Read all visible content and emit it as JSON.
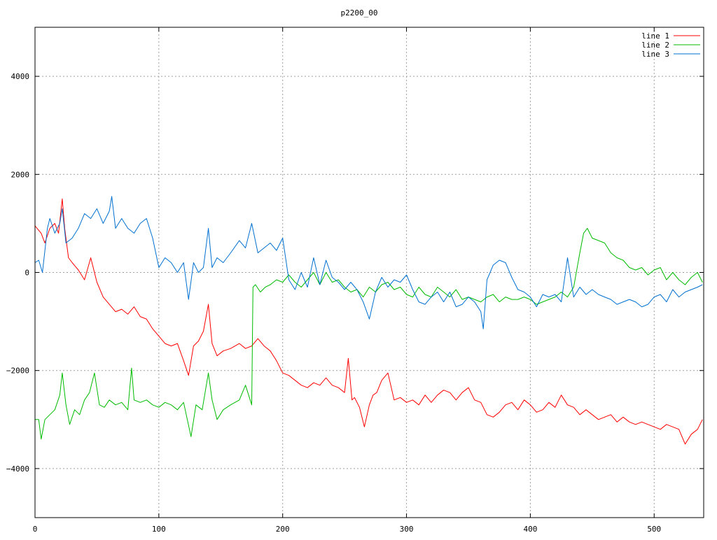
{
  "chart_data": {
    "type": "line",
    "title": "p2200_00",
    "xlabel": "",
    "ylabel": "",
    "xlim": [
      0,
      540
    ],
    "ylim": [
      -5000,
      5000
    ],
    "x_ticks": [
      0,
      100,
      200,
      300,
      400,
      500
    ],
    "y_ticks": [
      -4000,
      -2000,
      0,
      2000,
      4000
    ],
    "x_tick_labels": [
      "0",
      "100",
      "200",
      "300",
      "400",
      "500"
    ],
    "y_tick_labels": [
      "−4000",
      "−2000",
      "0",
      "2000",
      "4000"
    ],
    "grid": true,
    "legend_position": "top-right",
    "series": [
      {
        "name": "line 1",
        "color": "#ff0000",
        "x": [
          0,
          5,
          8,
          12,
          16,
          19,
          22,
          24,
          27,
          30,
          35,
          40,
          45,
          50,
          55,
          60,
          65,
          70,
          75,
          80,
          85,
          90,
          95,
          100,
          105,
          110,
          115,
          120,
          124,
          128,
          132,
          136,
          140,
          143,
          147,
          152,
          158,
          165,
          170,
          175,
          180,
          185,
          190,
          195,
          200,
          205,
          210,
          215,
          220,
          225,
          230,
          235,
          240,
          245,
          250,
          253,
          256,
          258,
          262,
          266,
          270,
          273,
          276,
          280,
          285,
          290,
          295,
          300,
          305,
          310,
          315,
          320,
          325,
          330,
          335,
          340,
          345,
          350,
          355,
          360,
          365,
          370,
          375,
          380,
          385,
          390,
          395,
          400,
          405,
          410,
          415,
          420,
          425,
          430,
          435,
          440,
          445,
          450,
          455,
          460,
          465,
          470,
          475,
          480,
          485,
          490,
          495,
          500,
          505,
          510,
          515,
          520,
          525,
          530,
          535,
          539
        ],
        "values": [
          950,
          800,
          600,
          900,
          1000,
          800,
          1500,
          900,
          300,
          200,
          50,
          -150,
          300,
          -200,
          -500,
          -650,
          -800,
          -750,
          -850,
          -700,
          -900,
          -950,
          -1150,
          -1300,
          -1450,
          -1500,
          -1450,
          -1800,
          -2100,
          -1500,
          -1400,
          -1200,
          -650,
          -1450,
          -1700,
          -1600,
          -1550,
          -1450,
          -1550,
          -1500,
          -1350,
          -1500,
          -1600,
          -1800,
          -2050,
          -2100,
          -2200,
          -2300,
          -2350,
          -2250,
          -2300,
          -2150,
          -2300,
          -2350,
          -2450,
          -1750,
          -2600,
          -2550,
          -2750,
          -3150,
          -2700,
          -2500,
          -2450,
          -2200,
          -2050,
          -2600,
          -2550,
          -2650,
          -2600,
          -2700,
          -2500,
          -2650,
          -2500,
          -2400,
          -2450,
          -2600,
          -2450,
          -2350,
          -2600,
          -2650,
          -2900,
          -2950,
          -2850,
          -2700,
          -2650,
          -2800,
          -2600,
          -2700,
          -2850,
          -2800,
          -2650,
          -2750,
          -2500,
          -2700,
          -2750,
          -2900,
          -2800,
          -2900,
          -3000,
          -2950,
          -2900,
          -3050,
          -2950,
          -3050,
          -3100,
          -3050,
          -3100,
          -3150,
          -3200,
          -3100,
          -3150,
          -3200,
          -3500,
          -3300,
          -3200,
          -3000
        ],
        "label": "line 1"
      },
      {
        "name": "line 2",
        "color": "#00bb00",
        "x": [
          0,
          3,
          5,
          8,
          12,
          16,
          20,
          22,
          25,
          28,
          32,
          36,
          40,
          44,
          48,
          52,
          56,
          60,
          65,
          70,
          75,
          78,
          80,
          85,
          90,
          95,
          100,
          105,
          110,
          115,
          120,
          123,
          126,
          130,
          135,
          140,
          143,
          147,
          152,
          158,
          165,
          170,
          175,
          176,
          178,
          182,
          186,
          190,
          195,
          200,
          205,
          210,
          215,
          220,
          225,
          230,
          235,
          240,
          245,
          250,
          255,
          260,
          265,
          270,
          275,
          280,
          285,
          290,
          295,
          300,
          305,
          310,
          315,
          320,
          325,
          330,
          335,
          340,
          345,
          350,
          355,
          360,
          365,
          370,
          375,
          380,
          385,
          390,
          395,
          400,
          405,
          410,
          415,
          420,
          425,
          430,
          435,
          440,
          443,
          446,
          450,
          455,
          460,
          465,
          470,
          475,
          480,
          485,
          490,
          495,
          500,
          505,
          510,
          515,
          520,
          525,
          530,
          535,
          539
        ],
        "values": [
          -3000,
          -3000,
          -3400,
          -3000,
          -2900,
          -2800,
          -2500,
          -2050,
          -2700,
          -3100,
          -2800,
          -2900,
          -2600,
          -2450,
          -2050,
          -2700,
          -2750,
          -2600,
          -2700,
          -2650,
          -2800,
          -1950,
          -2600,
          -2650,
          -2600,
          -2700,
          -2750,
          -2650,
          -2700,
          -2800,
          -2650,
          -3000,
          -3350,
          -2700,
          -2800,
          -2050,
          -2600,
          -3000,
          -2800,
          -2700,
          -2600,
          -2300,
          -2700,
          -300,
          -250,
          -400,
          -300,
          -250,
          -150,
          -200,
          -50,
          -200,
          -300,
          -150,
          0,
          -250,
          0,
          -200,
          -150,
          -300,
          -400,
          -350,
          -500,
          -300,
          -400,
          -250,
          -200,
          -350,
          -300,
          -450,
          -500,
          -300,
          -450,
          -500,
          -300,
          -400,
          -500,
          -350,
          -550,
          -500,
          -550,
          -600,
          -500,
          -450,
          -600,
          -500,
          -550,
          -550,
          -500,
          -550,
          -650,
          -600,
          -550,
          -500,
          -400,
          -500,
          -300,
          400,
          800,
          900,
          700,
          650,
          600,
          400,
          300,
          250,
          100,
          50,
          100,
          -50,
          50,
          100,
          -150,
          0,
          -150,
          -250,
          -100,
          0,
          -200
        ],
        "label": "line 2"
      },
      {
        "name": "line 3",
        "color": "#0070d0",
        "x": [
          0,
          3,
          6,
          10,
          12,
          16,
          20,
          22,
          25,
          30,
          35,
          40,
          45,
          50,
          55,
          60,
          62,
          65,
          70,
          75,
          80,
          85,
          90,
          95,
          100,
          105,
          110,
          115,
          120,
          124,
          128,
          132,
          136,
          140,
          143,
          147,
          152,
          158,
          165,
          170,
          175,
          180,
          185,
          190,
          195,
          200,
          205,
          210,
          215,
          220,
          225,
          230,
          235,
          240,
          245,
          250,
          255,
          260,
          265,
          270,
          275,
          280,
          285,
          290,
          295,
          300,
          305,
          310,
          315,
          320,
          325,
          330,
          335,
          340,
          345,
          350,
          355,
          360,
          362,
          365,
          370,
          375,
          380,
          385,
          390,
          395,
          400,
          405,
          410,
          415,
          420,
          425,
          430,
          435,
          440,
          445,
          450,
          455,
          460,
          465,
          470,
          475,
          480,
          485,
          490,
          495,
          500,
          505,
          510,
          515,
          520,
          525,
          530,
          535,
          539
        ],
        "values": [
          200,
          250,
          0,
          900,
          1100,
          800,
          1000,
          1300,
          600,
          700,
          900,
          1200,
          1100,
          1300,
          1000,
          1250,
          1550,
          900,
          1100,
          900,
          800,
          1000,
          1100,
          700,
          100,
          300,
          200,
          0,
          200,
          -550,
          200,
          0,
          100,
          900,
          100,
          300,
          200,
          400,
          650,
          500,
          1000,
          400,
          500,
          600,
          450,
          700,
          -150,
          -350,
          0,
          -300,
          300,
          -250,
          250,
          -100,
          -200,
          -350,
          -200,
          -350,
          -600,
          -950,
          -400,
          -100,
          -300,
          -150,
          -200,
          -50,
          -350,
          -600,
          -650,
          -500,
          -400,
          -600,
          -400,
          -700,
          -650,
          -500,
          -600,
          -800,
          -1150,
          -150,
          150,
          250,
          200,
          -100,
          -350,
          -400,
          -500,
          -700,
          -450,
          -500,
          -450,
          -600,
          300,
          -500,
          -300,
          -450,
          -350,
          -450,
          -500,
          -550,
          -650,
          -600,
          -550,
          -600,
          -700,
          -650,
          -500,
          -450,
          -600,
          -350,
          -500,
          -400,
          -350,
          -300,
          -250
        ],
        "label": "line 3"
      }
    ]
  }
}
